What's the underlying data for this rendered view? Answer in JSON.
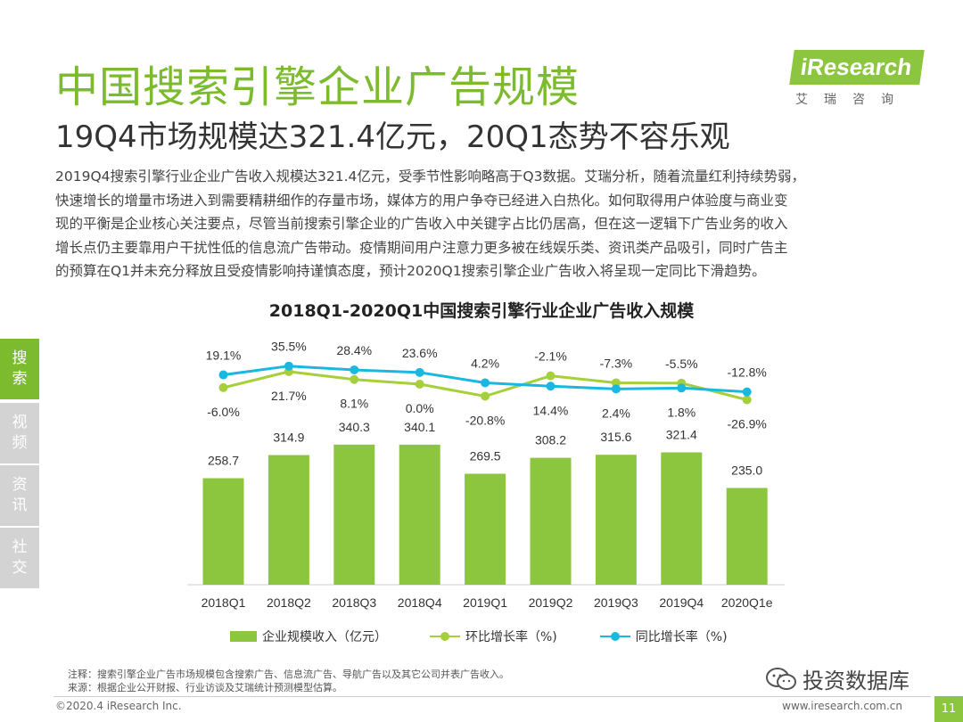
{
  "header": {
    "title": "中国搜索引擎企业广告规模",
    "subtitle": "19Q4市场规模达321.4亿元，20Q1态势不容乐观",
    "logo_text": "iResearch",
    "logo_cn": "艾瑞咨询"
  },
  "description": [
    "2019Q4搜索引擎行业企业广告收入规模达321.4亿元，受季节性影响略高于Q3数据。艾瑞分析，随着流量红利持续势弱，",
    "快速增长的增量市场进入到需要精耕细作的存量市场，媒体方的用户争夺已经进入白热化。如何取得用户体验度与商业变",
    "现的平衡是企业核心关注要点，尽管当前搜索引擎企业的广告收入中关键字占比仍居高，但在这一逻辑下广告业务的收入",
    "增长点仍主要靠用户干扰性低的信息流广告带动。疫情期间用户注意力更多被在线娱乐类、资讯类产品吸引，同时广告主",
    "的预算在Q1并未充分释放且受疫情影响持谨慎态度，预计2020Q1搜索引擎企业广告收入将呈现一定同比下滑趋势。"
  ],
  "side_tabs": [
    {
      "label1": "搜",
      "label2": "索",
      "active": true
    },
    {
      "label1": "视",
      "label2": "频",
      "active": false
    },
    {
      "label1": "资",
      "label2": "讯",
      "active": false
    },
    {
      "label1": "社",
      "label2": "交",
      "active": false
    }
  ],
  "chart_data": {
    "type": "bar",
    "title": "2018Q1-2020Q1中国搜索引擎行业企业广告收入规模",
    "categories": [
      "2018Q1",
      "2018Q2",
      "2018Q3",
      "2018Q4",
      "2019Q1",
      "2019Q2",
      "2019Q3",
      "2019Q4",
      "2020Q1e"
    ],
    "series": [
      {
        "name": "企业规模收入（亿元）",
        "type": "bar",
        "color": "#8cc63f",
        "values": [
          258.7,
          314.9,
          340.3,
          340.1,
          269.5,
          308.2,
          315.6,
          321.4,
          235.0
        ],
        "labels": [
          "258.7",
          "314.9",
          "340.3",
          "340.1",
          "269.5",
          "308.2",
          "315.6",
          "321.4",
          "235.0"
        ]
      },
      {
        "name": "环比增长率（%)",
        "type": "line",
        "color": "#a6cf3a",
        "values": [
          -6.0,
          21.7,
          8.1,
          0.0,
          -20.8,
          14.4,
          2.4,
          1.8,
          -26.9
        ],
        "labels": [
          "-6.0%",
          "21.7%",
          "8.1%",
          "0.0%",
          "-20.8%",
          "14.4%",
          "2.4%",
          "1.8%",
          "-26.9%"
        ]
      },
      {
        "name": "同比增长率（%)",
        "type": "line",
        "color": "#19b8e0",
        "values": [
          19.1,
          35.5,
          28.4,
          23.6,
          4.2,
          -2.1,
          -7.3,
          -5.5,
          -12.8
        ],
        "labels": [
          "19.1%",
          "35.5%",
          "28.4%",
          "23.6%",
          "4.2%",
          "-2.1%",
          "-7.3%",
          "-5.5%",
          "-12.8%"
        ]
      }
    ],
    "legend_position": "bottom",
    "grid": false
  },
  "notes": {
    "note": "注释：搜索引擎企业广告市场规模包含搜索广告、信息流广告、导航广告以及其它公司并表广告收入。",
    "source": "来源：根据企业公开财报、行业访谈及艾瑞统计预测模型估算。"
  },
  "footer": {
    "copyright": "©2020.4 iResearch Inc.",
    "site": "www.iresearch.com.cn",
    "page": "11",
    "wechat": "投资数据库"
  }
}
